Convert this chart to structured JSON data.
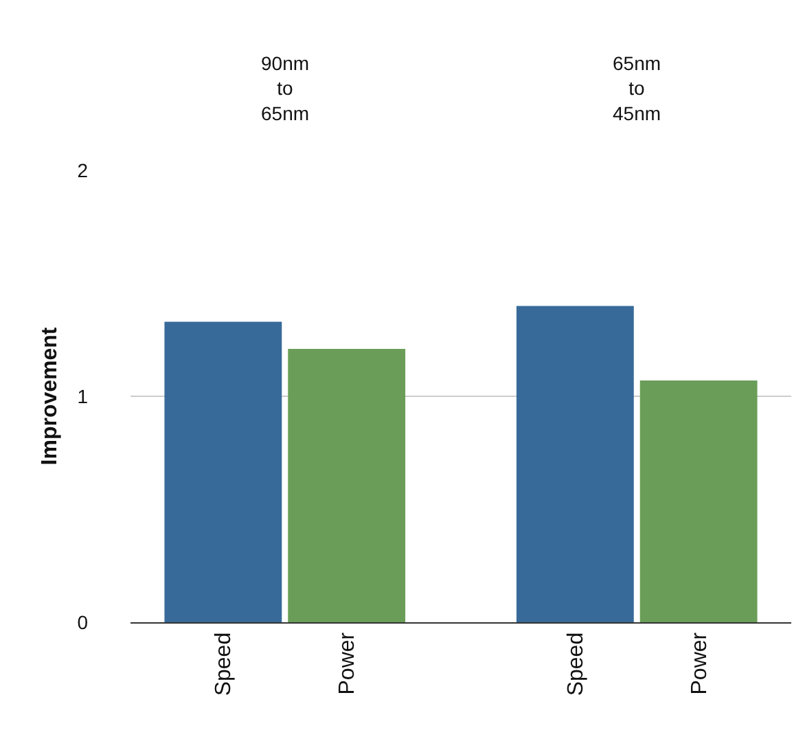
{
  "chart_data": {
    "type": "bar",
    "ylabel": "Improvement",
    "categories": [
      "Speed",
      "Power",
      "Speed",
      "Power"
    ],
    "values": [
      1.33,
      1.21,
      1.4,
      1.07
    ],
    "colors": [
      "#376a99",
      "#6a9e58",
      "#376a99",
      "#6a9e58"
    ],
    "ylim": [
      0,
      2
    ],
    "yticks": [
      0,
      1,
      2
    ],
    "grid": "y",
    "annotations": [
      "90nm\nto\n65nm",
      "65nm\nto\n45nm"
    ]
  }
}
